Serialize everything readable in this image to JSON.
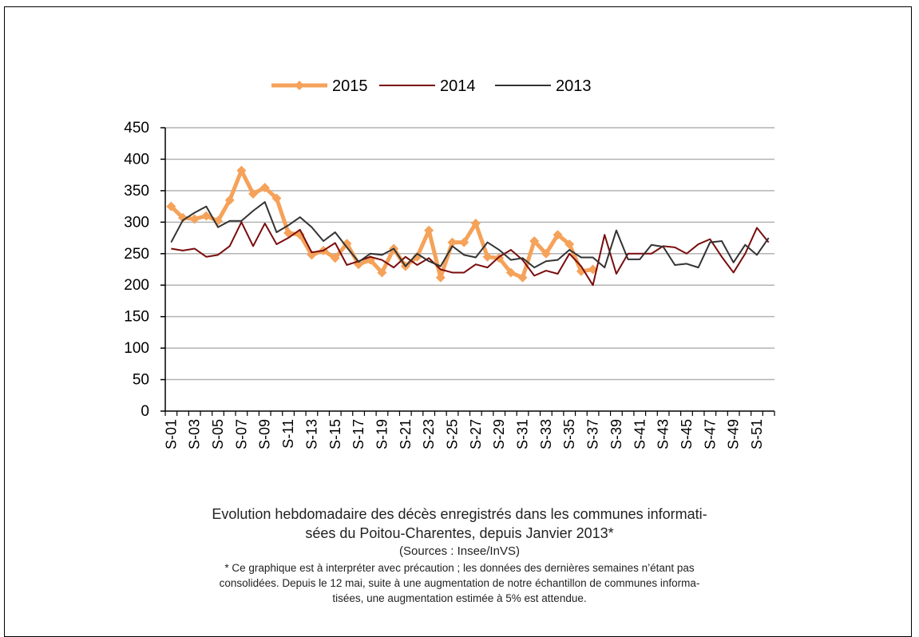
{
  "chart_data": {
    "type": "line",
    "categories": [
      "S-01",
      null,
      "S-03",
      null,
      "S-05",
      null,
      "S-07",
      null,
      "S-09",
      null,
      "S-11",
      null,
      "S-13",
      null,
      "S-15",
      null,
      "S-17",
      null,
      "S-19",
      null,
      "S-21",
      null,
      "S-23",
      null,
      "S-25",
      null,
      "S-27",
      null,
      "S-29",
      null,
      "S-31",
      null,
      "S-33",
      null,
      "S-35",
      null,
      "S-37",
      null,
      "S-39",
      null,
      "S-41",
      null,
      "S-43",
      null,
      "S-45",
      null,
      "S-47",
      null,
      "S-49",
      null,
      "S-51",
      null
    ],
    "series": [
      {
        "name": "2015",
        "color": "#f5a25a",
        "marker": "diamond",
        "width": 5,
        "values": [
          325,
          307,
          305,
          310,
          302,
          335,
          382,
          345,
          355,
          338,
          283,
          280,
          248,
          255,
          243,
          266,
          233,
          240,
          220,
          258,
          230,
          245,
          287,
          212,
          268,
          268,
          298,
          245,
          243,
          220,
          212,
          270,
          250,
          280,
          265,
          222,
          225,
          null,
          null,
          null,
          null,
          null,
          null,
          null,
          null,
          null,
          null,
          null,
          null,
          null,
          null,
          null
        ]
      },
      {
        "name": "2014",
        "color": "#7a0c0c",
        "width": 2,
        "values": [
          258,
          255,
          258,
          245,
          248,
          262,
          300,
          262,
          298,
          265,
          275,
          288,
          252,
          255,
          267,
          232,
          238,
          245,
          240,
          228,
          245,
          232,
          243,
          225,
          220,
          220,
          233,
          228,
          245,
          256,
          240,
          215,
          223,
          218,
          250,
          230,
          200,
          280,
          218,
          250,
          250,
          250,
          262,
          260,
          250,
          265,
          273,
          245,
          220,
          250,
          291,
          268
        ]
      },
      {
        "name": "2013",
        "color": "#333333",
        "width": 2,
        "values": [
          268,
          303,
          315,
          325,
          292,
          302,
          302,
          318,
          332,
          284,
          295,
          308,
          292,
          270,
          284,
          260,
          237,
          250,
          248,
          258,
          230,
          250,
          238,
          230,
          262,
          248,
          244,
          268,
          256,
          240,
          243,
          228,
          238,
          240,
          256,
          244,
          244,
          228,
          287,
          241,
          241,
          264,
          261,
          232,
          234,
          228,
          268,
          270,
          236,
          264,
          248,
          275
        ]
      }
    ],
    "ylim": [
      0,
      450
    ],
    "yticks": [
      0,
      50,
      100,
      150,
      200,
      250,
      300,
      350,
      400,
      450
    ],
    "grid": true,
    "legend": "top",
    "caption": [
      "Evolution hebdomadaire des décès enregistrés dans les communes informati-",
      "sées du Poitou-Charentes, depuis Janvier  2013*"
    ],
    "source": "(Sources : Insee/InVS)",
    "note": [
      "* Ce graphique est à interpréter avec précaution ; les données des dernières semaines n’étant pas",
      "consolidées. Depuis le 12 mai, suite à une augmentation de notre échantillon de communes informa-",
      "tisées, une augmentation estimée à 5% est attendue."
    ]
  }
}
